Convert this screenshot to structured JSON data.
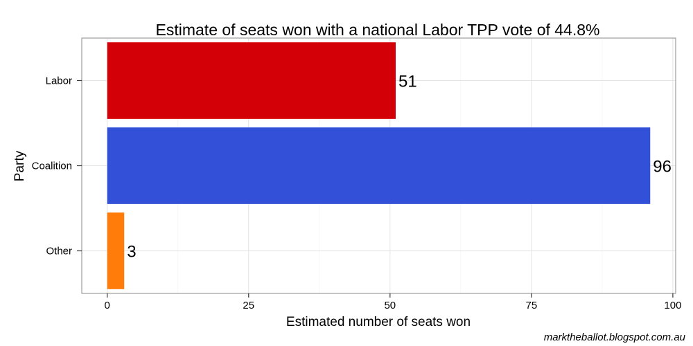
{
  "chart_data": {
    "type": "bar",
    "orientation": "horizontal",
    "title": "Estimate of seats won with a national Labor TPP vote of 44.8%",
    "xlabel": "Estimated number of seats won",
    "ylabel": "Party",
    "categories": [
      "Labor",
      "Coalition",
      "Other"
    ],
    "values": [
      51,
      96,
      3
    ],
    "data_labels": [
      "51",
      "96",
      "3"
    ],
    "colors": [
      "#d40008",
      "#3350d9",
      "#ff7c0a"
    ],
    "xlim": [
      -4.5,
      100.5
    ],
    "xticks": [
      0,
      25,
      50,
      75,
      100
    ],
    "xtick_labels": [
      "0",
      "25",
      "50",
      "75",
      "100"
    ],
    "grid": true,
    "legend": "none"
  },
  "credit": "marktheballot.blogspot.com.au"
}
